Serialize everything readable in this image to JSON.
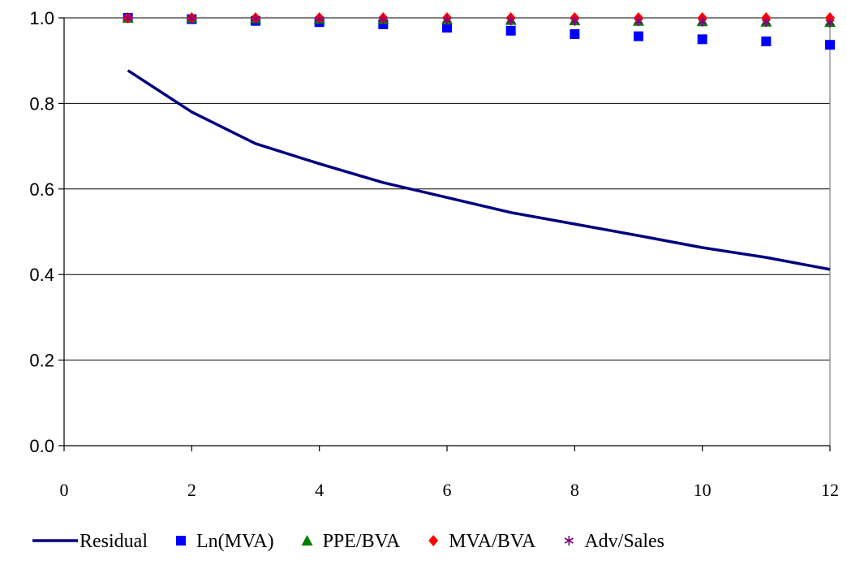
{
  "chart_data": {
    "type": "line",
    "title": "",
    "xlabel": "",
    "ylabel": "",
    "xlim": [
      0,
      12
    ],
    "ylim": [
      0.0,
      1.0
    ],
    "x_ticks": [
      "0",
      "2",
      "4",
      "6",
      "8",
      "10",
      "12"
    ],
    "y_ticks": [
      "0.0",
      "0.2",
      "0.4",
      "0.6",
      "0.8",
      "1.0"
    ],
    "grid": "horizontal",
    "legend_position": "bottom",
    "x": [
      1,
      2,
      3,
      4,
      5,
      6,
      7,
      8,
      9,
      10,
      11,
      12
    ],
    "series": [
      {
        "name": "Residual",
        "style": "line",
        "color": "#000080",
        "values": [
          0.877,
          0.78,
          0.706,
          0.659,
          0.615,
          0.58,
          0.545,
          0.518,
          0.491,
          0.463,
          0.44,
          0.412
        ]
      },
      {
        "name": "Ln(MVA)",
        "style": "square",
        "color": "#0000ff",
        "values": [
          1.0,
          0.997,
          0.993,
          0.99,
          0.985,
          0.977,
          0.97,
          0.962,
          0.957,
          0.95,
          0.945,
          0.937
        ]
      },
      {
        "name": "PPE/BVA",
        "style": "triangle",
        "color": "#008000",
        "values": [
          1.0,
          1.0,
          0.999,
          0.998,
          0.997,
          0.996,
          0.995,
          0.994,
          0.993,
          0.992,
          0.991,
          0.99
        ]
      },
      {
        "name": "MVA/BVA",
        "style": "diamond",
        "color": "#ff0000",
        "values": [
          1.0,
          1.0,
          1.0,
          1.0,
          1.0,
          1.0,
          1.0,
          1.0,
          1.0,
          1.0,
          1.0,
          1.0
        ]
      },
      {
        "name": "Adv/Sales",
        "style": "asterisk",
        "color": "#800080",
        "values": [
          1.0,
          0.999,
          0.998,
          0.997,
          0.996,
          0.995,
          0.994,
          0.993,
          0.992,
          0.991,
          0.99,
          0.989
        ]
      }
    ]
  }
}
